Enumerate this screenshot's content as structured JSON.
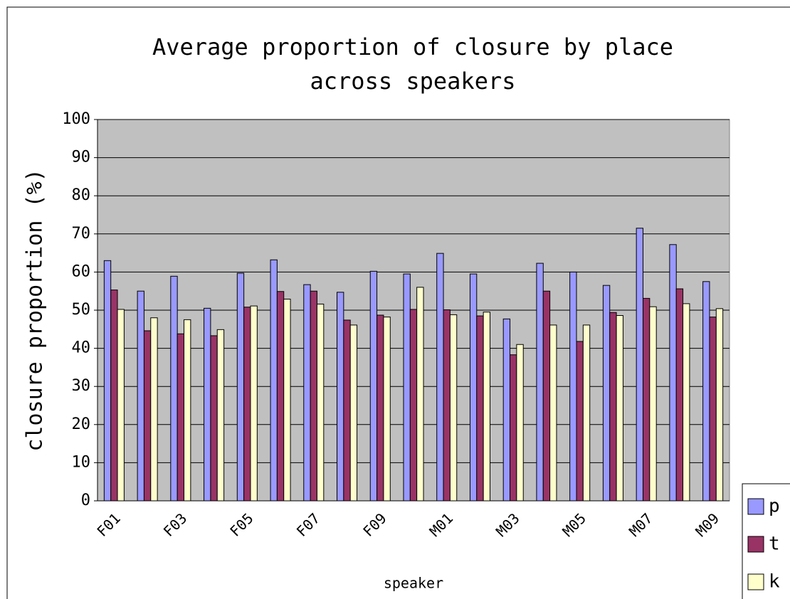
{
  "chart_data": {
    "type": "bar",
    "title": "Average proportion of closure by place across speakers",
    "x_label": "speaker",
    "y_label": "closure proportion (%)",
    "categories": [
      "F01",
      null,
      "F03",
      null,
      "F05",
      null,
      "F07",
      null,
      "F09",
      null,
      "M01",
      null,
      "M03",
      null,
      "M05",
      null,
      "M07",
      null,
      "M09"
    ],
    "series": [
      {
        "name": "p",
        "color": "#9999ff",
        "values": [
          63,
          55,
          58.9,
          50.5,
          59.7,
          63.2,
          56.7,
          54.7,
          60.2,
          59.5,
          64.9,
          59.5,
          47.7,
          62.3,
          60,
          56.5,
          71.5,
          67.2,
          57.5
        ]
      },
      {
        "name": "t",
        "color": "#993366",
        "values": [
          55.3,
          44.6,
          43.8,
          43.3,
          50.8,
          54.9,
          55,
          47.4,
          48.7,
          50.2,
          50.1,
          48.5,
          38.3,
          55,
          41.8,
          49.4,
          53.1,
          55.6,
          48.2
        ]
      },
      {
        "name": "k",
        "color": "#ffffcc",
        "values": [
          50.2,
          48,
          47.5,
          44.9,
          51.1,
          52.9,
          51.6,
          46.1,
          48.2,
          56,
          48.8,
          49.5,
          41,
          46.1,
          46.1,
          48.6,
          50.9,
          51.7,
          50.4
        ]
      }
    ],
    "ylim": [
      0,
      100
    ],
    "yticks": [
      0,
      10,
      20,
      30,
      40,
      50,
      60,
      70,
      80,
      90,
      100
    ],
    "grid": true,
    "legend": "right"
  }
}
